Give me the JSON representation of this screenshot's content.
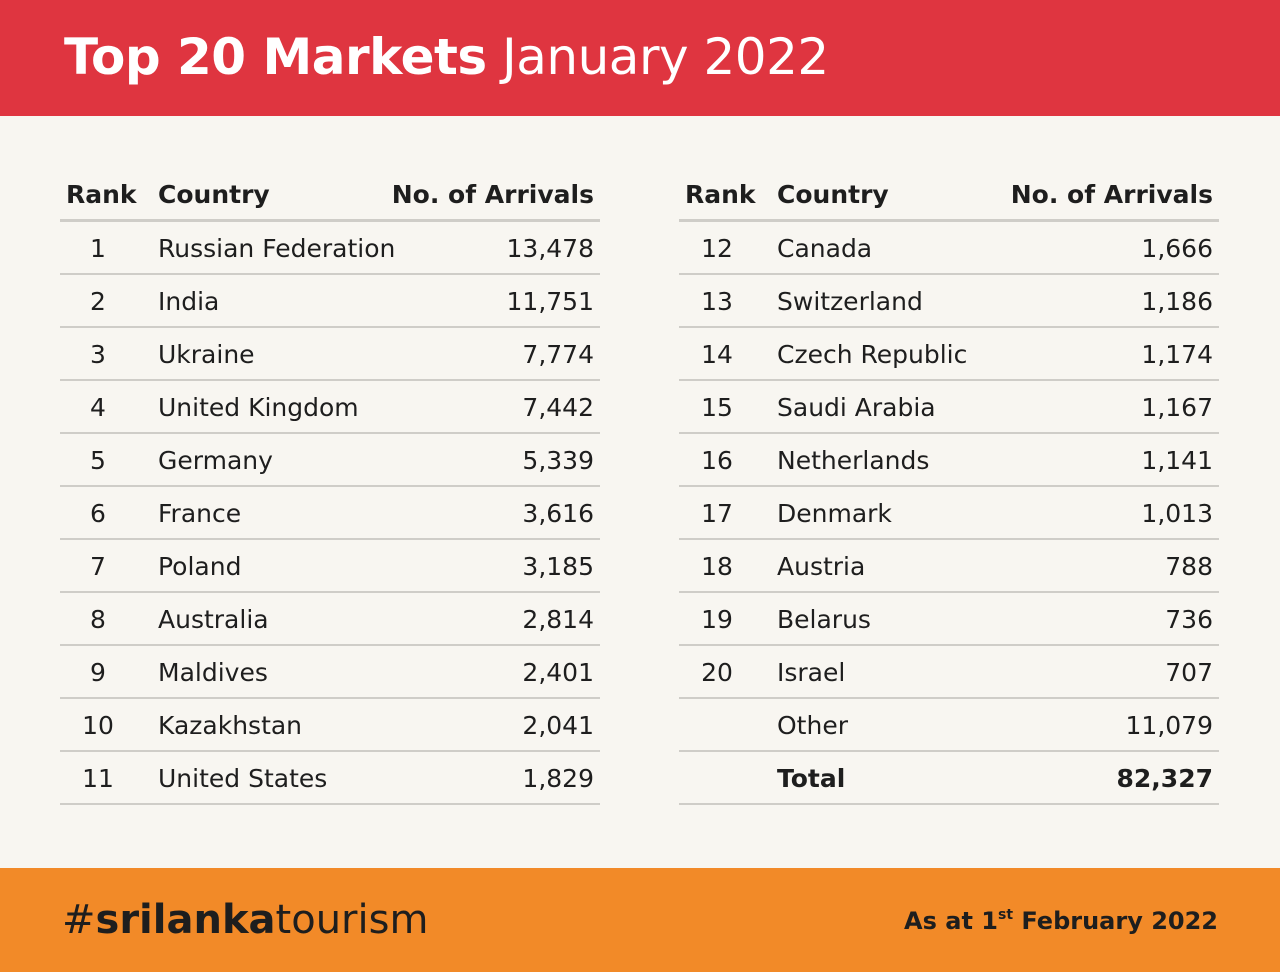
{
  "header": {
    "title_bold": "Top 20 Markets",
    "title_light": "January 2022"
  },
  "columns": {
    "rank": "Rank",
    "country": "Country",
    "arrivals": "No. of Arrivals"
  },
  "left_table": [
    {
      "rank": "1",
      "country": "Russian Federation",
      "arrivals": "13,478"
    },
    {
      "rank": "2",
      "country": "India",
      "arrivals": "11,751"
    },
    {
      "rank": "3",
      "country": "Ukraine",
      "arrivals": "7,774"
    },
    {
      "rank": "4",
      "country": "United Kingdom",
      "arrivals": "7,442"
    },
    {
      "rank": "5",
      "country": "Germany",
      "arrivals": "5,339"
    },
    {
      "rank": "6",
      "country": "France",
      "arrivals": "3,616"
    },
    {
      "rank": "7",
      "country": "Poland",
      "arrivals": "3,185"
    },
    {
      "rank": "8",
      "country": "Australia",
      "arrivals": "2,814"
    },
    {
      "rank": "9",
      "country": "Maldives",
      "arrivals": "2,401"
    },
    {
      "rank": "10",
      "country": "Kazakhstan",
      "arrivals": "2,041"
    },
    {
      "rank": "11",
      "country": "United States",
      "arrivals": "1,829"
    }
  ],
  "right_table": [
    {
      "rank": "12",
      "country": "Canada",
      "arrivals": "1,666"
    },
    {
      "rank": "13",
      "country": "Switzerland",
      "arrivals": "1,186"
    },
    {
      "rank": "14",
      "country": "Czech Republic",
      "arrivals": "1,174"
    },
    {
      "rank": "15",
      "country": "Saudi Arabia",
      "arrivals": "1,167"
    },
    {
      "rank": "16",
      "country": "Netherlands",
      "arrivals": "1,141"
    },
    {
      "rank": "17",
      "country": "Denmark",
      "arrivals": "1,013"
    },
    {
      "rank": "18",
      "country": "Austria",
      "arrivals": "788"
    },
    {
      "rank": "19",
      "country": "Belarus",
      "arrivals": "736"
    },
    {
      "rank": "20",
      "country": "Israel",
      "arrivals": "707"
    },
    {
      "rank": "",
      "country": "Other",
      "arrivals": "11,079"
    },
    {
      "rank": "",
      "country": "Total",
      "arrivals": "82,327"
    }
  ],
  "footer": {
    "hashtag_prefix": "#",
    "hashtag_bold": "srilanka",
    "hashtag_light": "tourism",
    "as_at_prefix": "As at 1",
    "as_at_sup": "st",
    "as_at_suffix": " February 2022"
  },
  "colors": {
    "header_bg": "#df3540",
    "footer_bg": "#f28a28",
    "page_bg": "#f8f6f1"
  }
}
